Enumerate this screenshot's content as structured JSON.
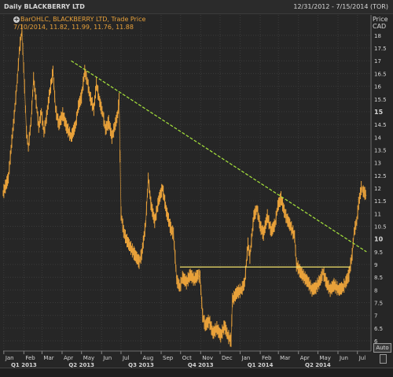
{
  "window": {
    "title": "Daily BLACKBERRY LTD",
    "date_range": "12/31/2012 - 7/15/2014 (TOR)"
  },
  "legend": {
    "line1": "BarOHLC, BLACKBERRY LTD, Trade Price",
    "line2": "7/10/2014, 11.82, 11.99, 11.76, 11.88",
    "plus_icon": "plus-icon"
  },
  "price_axis": {
    "label_line1": "Price",
    "label_line2": "CAD"
  },
  "controls": {
    "auto_label": "Auto"
  },
  "colors": {
    "background": "#262626",
    "price_bars": "#e8a13a",
    "trendline": "#a8e63c",
    "support_line": "#f2e06a",
    "axis_text": "#d6d6d6"
  },
  "chart_data": {
    "type": "line",
    "series_style": "OHLC bars (daily)",
    "ylim": [
      5.6,
      18.8
    ],
    "y_ticks": [
      6,
      6.5,
      7,
      7.5,
      8,
      8.5,
      9,
      9.5,
      10,
      10.5,
      11,
      11.5,
      12,
      12.5,
      13,
      13.5,
      14,
      14.5,
      15,
      15.5,
      16,
      16.5,
      17,
      17.5,
      18
    ],
    "y_tick_labels": [
      "6",
      "6.5",
      "7",
      "7.5",
      "8",
      "8.5",
      "9",
      "9.5",
      "10",
      "10.5",
      "11",
      "11.5",
      "12",
      "12.5",
      "13",
      "13.5",
      "14",
      "14.5",
      "15",
      "15.5",
      "16",
      "16.5",
      "17",
      "17.5",
      "18"
    ],
    "x_month_labels": [
      "Jan",
      "Feb",
      "Mar",
      "Apr",
      "May",
      "Jun",
      "Jul",
      "Aug",
      "Sep",
      "Oct",
      "Nov",
      "Dec",
      "Jan",
      "Feb",
      "Mar",
      "Apr",
      "May",
      "Jun",
      "Jul"
    ],
    "x_month_starts": [
      "2013-01",
      "2013-02",
      "2013-03",
      "2013-04",
      "2013-05",
      "2013-06",
      "2013-07",
      "2013-08",
      "2013-09",
      "2013-10",
      "2013-11",
      "2013-12",
      "2014-01",
      "2014-02",
      "2014-03",
      "2014-04",
      "2014-05",
      "2014-06",
      "2014-07"
    ],
    "quarter_labels": [
      {
        "label": "Q1 2013",
        "month": "2013-02"
      },
      {
        "label": "Q2 2013",
        "month": "2013-05"
      },
      {
        "label": "Q3 2013",
        "month": "2013-08"
      },
      {
        "label": "Q4 2013",
        "month": "2013-11"
      },
      {
        "label": "Q1 2014",
        "month": "2014-02"
      },
      {
        "label": "Q2 2014",
        "month": "2014-05"
      }
    ],
    "price_path": [
      [
        "2012-12-31",
        11.8
      ],
      [
        "2013-01-08",
        12.4
      ],
      [
        "2013-01-11",
        13.2
      ],
      [
        "2013-01-17",
        14.8
      ],
      [
        "2013-01-22",
        16.3
      ],
      [
        "2013-01-25",
        17.4
      ],
      [
        "2013-01-29",
        18.2
      ],
      [
        "2013-02-02",
        16.0
      ],
      [
        "2013-02-05",
        14.2
      ],
      [
        "2013-02-08",
        13.6
      ],
      [
        "2013-02-12",
        14.6
      ],
      [
        "2013-02-16",
        16.3
      ],
      [
        "2013-02-20",
        15.4
      ],
      [
        "2013-02-24",
        14.4
      ],
      [
        "2013-02-28",
        15.0
      ],
      [
        "2013-03-04",
        14.2
      ],
      [
        "2013-03-08",
        14.8
      ],
      [
        "2013-03-12",
        15.6
      ],
      [
        "2013-03-18",
        16.6
      ],
      [
        "2013-03-22",
        15.1
      ],
      [
        "2013-03-27",
        14.5
      ],
      [
        "2013-04-02",
        14.9
      ],
      [
        "2013-04-08",
        14.4
      ],
      [
        "2013-04-15",
        14.0
      ],
      [
        "2013-04-22",
        14.5
      ],
      [
        "2013-04-26",
        15.2
      ],
      [
        "2013-05-01",
        15.6
      ],
      [
        "2013-05-06",
        16.6
      ],
      [
        "2013-05-10",
        16.2
      ],
      [
        "2013-05-14",
        15.6
      ],
      [
        "2013-05-20",
        15.1
      ],
      [
        "2013-05-24",
        16.1
      ],
      [
        "2013-05-29",
        15.4
      ],
      [
        "2013-06-03",
        14.9
      ],
      [
        "2013-06-07",
        14.3
      ],
      [
        "2013-06-12",
        14.6
      ],
      [
        "2013-06-17",
        14.0
      ],
      [
        "2013-06-21",
        14.4
      ],
      [
        "2013-06-26",
        14.9
      ],
      [
        "2013-06-28",
        15.5
      ],
      [
        "2013-07-01",
        11.0
      ],
      [
        "2013-07-05",
        10.3
      ],
      [
        "2013-07-09",
        10.0
      ],
      [
        "2013-07-15",
        9.7
      ],
      [
        "2013-07-22",
        9.4
      ],
      [
        "2013-07-29",
        9.1
      ],
      [
        "2013-08-02",
        9.4
      ],
      [
        "2013-08-08",
        10.6
      ],
      [
        "2013-08-12",
        12.4
      ],
      [
        "2013-08-16",
        11.4
      ],
      [
        "2013-08-22",
        10.7
      ],
      [
        "2013-08-28",
        11.5
      ],
      [
        "2013-09-03",
        12.0
      ],
      [
        "2013-09-09",
        11.1
      ],
      [
        "2013-09-16",
        10.4
      ],
      [
        "2013-09-20",
        10.2
      ],
      [
        "2013-09-25",
        8.4
      ],
      [
        "2013-09-30",
        8.1
      ],
      [
        "2013-10-04",
        8.5
      ],
      [
        "2013-10-10",
        8.3
      ],
      [
        "2013-10-16",
        8.6
      ],
      [
        "2013-10-22",
        8.4
      ],
      [
        "2013-10-28",
        8.6
      ],
      [
        "2013-10-31",
        8.5
      ],
      [
        "2013-11-04",
        7.0
      ],
      [
        "2013-11-08",
        6.6
      ],
      [
        "2013-11-14",
        6.8
      ],
      [
        "2013-11-20",
        6.3
      ],
      [
        "2013-11-26",
        6.5
      ],
      [
        "2013-12-02",
        6.2
      ],
      [
        "2013-12-08",
        6.6
      ],
      [
        "2013-12-13",
        6.2
      ],
      [
        "2013-12-18",
        6.0
      ],
      [
        "2013-12-20",
        7.6
      ],
      [
        "2013-12-27",
        7.9
      ],
      [
        "2014-01-03",
        8.0
      ],
      [
        "2014-01-08",
        8.3
      ],
      [
        "2014-01-13",
        9.8
      ],
      [
        "2014-01-16",
        9.3
      ],
      [
        "2014-01-22",
        10.9
      ],
      [
        "2014-01-27",
        11.2
      ],
      [
        "2014-02-01",
        10.5
      ],
      [
        "2014-02-06",
        10.2
      ],
      [
        "2014-02-12",
        10.9
      ],
      [
        "2014-02-18",
        10.3
      ],
      [
        "2014-02-24",
        10.6
      ],
      [
        "2014-02-28",
        11.3
      ],
      [
        "2014-03-05",
        11.6
      ],
      [
        "2014-03-10",
        11.1
      ],
      [
        "2014-03-14",
        10.8
      ],
      [
        "2014-03-20",
        10.5
      ],
      [
        "2014-03-26",
        10.1
      ],
      [
        "2014-03-29",
        9.0
      ],
      [
        "2014-04-04",
        8.7
      ],
      [
        "2014-04-10",
        8.5
      ],
      [
        "2014-04-16",
        8.3
      ],
      [
        "2014-04-22",
        8.0
      ],
      [
        "2014-04-28",
        8.1
      ],
      [
        "2014-05-05",
        8.4
      ],
      [
        "2014-05-09",
        8.7
      ],
      [
        "2014-05-14",
        8.3
      ],
      [
        "2014-05-20",
        8.0
      ],
      [
        "2014-05-26",
        8.2
      ],
      [
        "2014-06-02",
        8.0
      ],
      [
        "2014-06-09",
        8.1
      ],
      [
        "2014-06-13",
        8.3
      ],
      [
        "2014-06-18",
        8.6
      ],
      [
        "2014-06-23",
        9.4
      ],
      [
        "2014-06-26",
        10.3
      ],
      [
        "2014-06-30",
        10.7
      ],
      [
        "2014-07-03",
        11.4
      ],
      [
        "2014-07-07",
        12.0
      ],
      [
        "2014-07-10",
        11.88
      ],
      [
        "2014-07-15",
        11.7
      ]
    ],
    "annotations": [
      {
        "type": "trendline",
        "style": "dashed",
        "from": [
          "2013-04-15",
          17.0
        ],
        "to": [
          "2014-07-15",
          9.5
        ]
      },
      {
        "type": "support_line",
        "style": "solid",
        "from": [
          "2013-09-30",
          8.9
        ],
        "to": [
          "2014-06-20",
          8.9
        ]
      }
    ]
  }
}
